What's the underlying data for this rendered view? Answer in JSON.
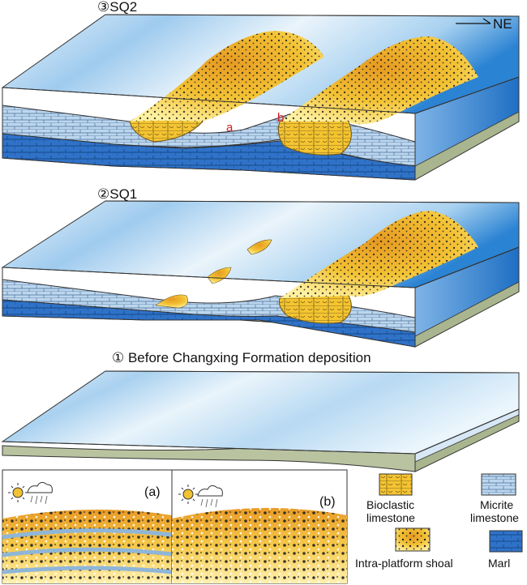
{
  "panels": {
    "sq2": {
      "label": "③SQ2",
      "marker_a": "a",
      "marker_b": "b"
    },
    "sq1": {
      "label": "②SQ1"
    },
    "before": {
      "label": "① Before Changxing Formation deposition"
    }
  },
  "orientation": {
    "label": "NE"
  },
  "insets": {
    "a": "(a)",
    "b": "(b)"
  },
  "legend": {
    "bioclastic": [
      "Bioclastic",
      "limestone"
    ],
    "micrite": [
      "Micrite",
      "limestone"
    ],
    "shoal": "Intra-platform shoal",
    "marl": "Marl"
  },
  "colors": {
    "water_light": "#e8f3fb",
    "water_mid": "#9cc9ec",
    "water_deep": "#1e74c8",
    "limestone": "#bcd6ee",
    "marl": "#2f72c8",
    "substrate": "#b9c3a0",
    "shoal_light": "#fff3a8",
    "shoal_dark": "#e89a1e",
    "marker_red": "#d2202a"
  }
}
